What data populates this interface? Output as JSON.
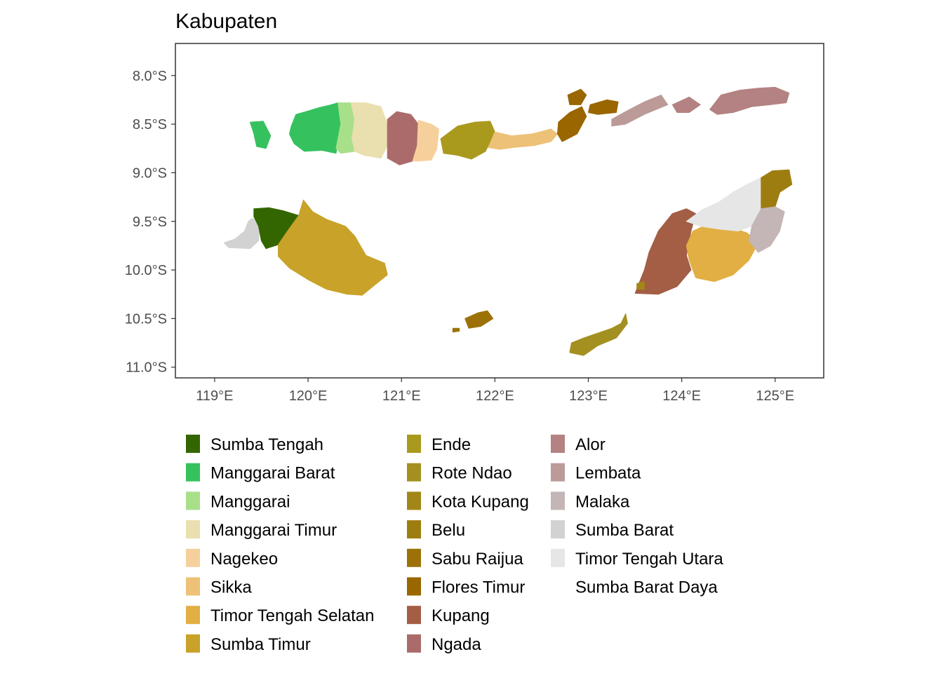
{
  "title": "Kabupaten",
  "x_axis": {
    "range": [
      118.58,
      125.52
    ],
    "ticks": [
      {
        "value": 119,
        "label": "119°E"
      },
      {
        "value": 120,
        "label": "120°E"
      },
      {
        "value": 121,
        "label": "121°E"
      },
      {
        "value": 122,
        "label": "122°E"
      },
      {
        "value": 123,
        "label": "123°E"
      },
      {
        "value": 124,
        "label": "124°E"
      },
      {
        "value": 125,
        "label": "125°E"
      }
    ]
  },
  "y_axis": {
    "range": [
      -11.11,
      -7.67
    ],
    "ticks": [
      {
        "value": -8.0,
        "label": "8.0°S"
      },
      {
        "value": -8.5,
        "label": "8.5°S"
      },
      {
        "value": -9.0,
        "label": "9.0°S"
      },
      {
        "value": -9.5,
        "label": "9.5°S"
      },
      {
        "value": -10.0,
        "label": "10.0°S"
      },
      {
        "value": -10.5,
        "label": "10.5°S"
      },
      {
        "value": -11.0,
        "label": "11.0°S"
      }
    ]
  },
  "legend": {
    "columns": [
      [
        {
          "label": "Sumba Tengah",
          "color": "#336600"
        },
        {
          "label": "Manggarai Barat",
          "color": "#35C25E"
        },
        {
          "label": "Manggarai",
          "color": "#A8E08A"
        },
        {
          "label": "Manggarai Timur",
          "color": "#EADFAE"
        },
        {
          "label": "Nagekeo",
          "color": "#F6D09C"
        },
        {
          "label": "Sikka",
          "color": "#EDC177"
        },
        {
          "label": "Timor Tengah Selatan",
          "color": "#E2AF44"
        },
        {
          "label": "Sumba Timur",
          "color": "#C9A22A"
        }
      ],
      [
        {
          "label": "Ende",
          "color": "#A99A1E"
        },
        {
          "label": "Rote Ndao",
          "color": "#A39020"
        },
        {
          "label": "Kota Kupang",
          "color": "#A28618"
        },
        {
          "label": "Belu",
          "color": "#9E7D10"
        },
        {
          "label": "Sabu Raijua",
          "color": "#9C7208"
        },
        {
          "label": "Flores Timur",
          "color": "#996600"
        },
        {
          "label": "Kupang",
          "color": "#A35E45"
        },
        {
          "label": "Ngada",
          "color": "#AC6B6B"
        }
      ],
      [
        {
          "label": "Alor",
          "color": "#B48282"
        },
        {
          "label": "Lembata",
          "color": "#BC9A98"
        },
        {
          "label": "Malaka",
          "color": "#C4B6B6"
        },
        {
          "label": "Sumba Barat",
          "color": "#D2D2D2"
        },
        {
          "label": "Timor Tengah Utara",
          "color": "#E6E6E6"
        },
        {
          "label": "Sumba Barat Daya",
          "color": "#FFFFFF"
        }
      ]
    ]
  },
  "regions": [
    {
      "name": "Sumba Barat",
      "color": "#D2D2D2",
      "coords": [
        [
          119.4,
          -9.47
        ],
        [
          119.49,
          -9.5
        ],
        [
          119.47,
          -9.7
        ],
        [
          119.38,
          -9.78
        ],
        [
          119.15,
          -9.77
        ],
        [
          119.1,
          -9.72
        ],
        [
          119.22,
          -9.68
        ],
        [
          119.32,
          -9.6
        ],
        [
          119.36,
          -9.5
        ]
      ]
    },
    {
      "name": "Sumba Tengah",
      "color": "#336600",
      "coords": [
        [
          119.42,
          -9.37
        ],
        [
          119.58,
          -9.36
        ],
        [
          119.73,
          -9.39
        ],
        [
          119.9,
          -9.44
        ],
        [
          119.78,
          -9.6
        ],
        [
          119.68,
          -9.74
        ],
        [
          119.55,
          -9.78
        ],
        [
          119.5,
          -9.7
        ],
        [
          119.47,
          -9.55
        ],
        [
          119.42,
          -9.45
        ]
      ]
    },
    {
      "name": "Sumba Timur",
      "color": "#C9A22A",
      "coords": [
        [
          119.9,
          -9.44
        ],
        [
          119.95,
          -9.28
        ],
        [
          120.05,
          -9.4
        ],
        [
          120.2,
          -9.48
        ],
        [
          120.4,
          -9.55
        ],
        [
          120.5,
          -9.65
        ],
        [
          120.62,
          -9.85
        ],
        [
          120.82,
          -9.93
        ],
        [
          120.85,
          -10.05
        ],
        [
          120.72,
          -10.15
        ],
        [
          120.58,
          -10.26
        ],
        [
          120.42,
          -10.25
        ],
        [
          120.2,
          -10.2
        ],
        [
          120.0,
          -10.1
        ],
        [
          119.8,
          -9.98
        ],
        [
          119.68,
          -9.86
        ],
        [
          119.68,
          -9.74
        ],
        [
          119.78,
          -9.6
        ]
      ]
    },
    {
      "name": "Manggarai Barat",
      "color": "#35C25E",
      "coords": [
        [
          119.82,
          -8.52
        ],
        [
          119.87,
          -8.4
        ],
        [
          119.98,
          -8.37
        ],
        [
          120.12,
          -8.33
        ],
        [
          120.25,
          -8.3
        ],
        [
          120.32,
          -8.28
        ],
        [
          120.35,
          -8.5
        ],
        [
          120.3,
          -8.8
        ],
        [
          120.15,
          -8.77
        ],
        [
          119.96,
          -8.78
        ],
        [
          119.85,
          -8.7
        ],
        [
          119.8,
          -8.6
        ]
      ]
    },
    {
      "name": "Manggarai Barat islands",
      "color": "#35C25E",
      "coords": [
        [
          119.38,
          -8.48
        ],
        [
          119.52,
          -8.47
        ],
        [
          119.6,
          -8.62
        ],
        [
          119.55,
          -8.75
        ],
        [
          119.45,
          -8.73
        ],
        [
          119.42,
          -8.6
        ]
      ]
    },
    {
      "name": "Manggarai",
      "color": "#A8E08A",
      "coords": [
        [
          120.32,
          -8.28
        ],
        [
          120.46,
          -8.28
        ],
        [
          120.5,
          -8.45
        ],
        [
          120.47,
          -8.65
        ],
        [
          120.5,
          -8.78
        ],
        [
          120.35,
          -8.8
        ],
        [
          120.3,
          -8.75
        ],
        [
          120.35,
          -8.5
        ]
      ]
    },
    {
      "name": "Manggarai Timur",
      "color": "#EADFAE",
      "coords": [
        [
          120.46,
          -8.28
        ],
        [
          120.62,
          -8.28
        ],
        [
          120.78,
          -8.32
        ],
        [
          120.85,
          -8.5
        ],
        [
          120.85,
          -8.72
        ],
        [
          120.78,
          -8.85
        ],
        [
          120.6,
          -8.82
        ],
        [
          120.5,
          -8.78
        ],
        [
          120.47,
          -8.65
        ],
        [
          120.5,
          -8.45
        ]
      ]
    },
    {
      "name": "Ngada",
      "color": "#AC6B6B",
      "coords": [
        [
          120.85,
          -8.45
        ],
        [
          120.95,
          -8.37
        ],
        [
          121.1,
          -8.4
        ],
        [
          121.18,
          -8.5
        ],
        [
          121.17,
          -8.72
        ],
        [
          121.12,
          -8.88
        ],
        [
          120.98,
          -8.92
        ],
        [
          120.85,
          -8.85
        ]
      ]
    },
    {
      "name": "Nagekeo",
      "color": "#F6D09C",
      "coords": [
        [
          121.18,
          -8.46
        ],
        [
          121.32,
          -8.5
        ],
        [
          121.4,
          -8.55
        ],
        [
          121.38,
          -8.75
        ],
        [
          121.32,
          -8.87
        ],
        [
          121.18,
          -8.88
        ],
        [
          121.12,
          -8.88
        ],
        [
          121.17,
          -8.72
        ]
      ]
    },
    {
      "name": "Ende",
      "color": "#A99A1E",
      "coords": [
        [
          121.42,
          -8.65
        ],
        [
          121.6,
          -8.52
        ],
        [
          121.78,
          -8.48
        ],
        [
          121.95,
          -8.47
        ],
        [
          122.0,
          -8.58
        ],
        [
          121.9,
          -8.78
        ],
        [
          121.75,
          -8.86
        ],
        [
          121.6,
          -8.82
        ],
        [
          121.45,
          -8.8
        ]
      ]
    },
    {
      "name": "Sikka",
      "color": "#EDC177",
      "coords": [
        [
          122.0,
          -8.58
        ],
        [
          122.18,
          -8.62
        ],
        [
          122.4,
          -8.6
        ],
        [
          122.6,
          -8.55
        ],
        [
          122.67,
          -8.6
        ],
        [
          122.6,
          -8.68
        ],
        [
          122.42,
          -8.72
        ],
        [
          122.2,
          -8.74
        ],
        [
          122.05,
          -8.76
        ],
        [
          121.93,
          -8.74
        ]
      ]
    },
    {
      "name": "Flores Timur",
      "color": "#996600",
      "coords": [
        [
          122.68,
          -8.48
        ],
        [
          122.8,
          -8.38
        ],
        [
          122.93,
          -8.32
        ],
        [
          122.98,
          -8.42
        ],
        [
          122.88,
          -8.6
        ],
        [
          122.72,
          -8.68
        ],
        [
          122.67,
          -8.6
        ]
      ]
    },
    {
      "name": "Flores Timur north",
      "color": "#996600",
      "coords": [
        [
          122.78,
          -8.2
        ],
        [
          122.92,
          -8.14
        ],
        [
          122.98,
          -8.2
        ],
        [
          122.92,
          -8.3
        ],
        [
          122.8,
          -8.3
        ]
      ]
    },
    {
      "name": "Flores Timur Adonara",
      "color": "#996600",
      "coords": [
        [
          123.02,
          -8.3
        ],
        [
          123.2,
          -8.25
        ],
        [
          123.32,
          -8.27
        ],
        [
          123.3,
          -8.38
        ],
        [
          123.1,
          -8.4
        ],
        [
          123.0,
          -8.38
        ]
      ]
    },
    {
      "name": "Lembata",
      "color": "#BC9A98",
      "coords": [
        [
          123.25,
          -8.45
        ],
        [
          123.42,
          -8.36
        ],
        [
          123.6,
          -8.27
        ],
        [
          123.78,
          -8.2
        ],
        [
          123.85,
          -8.3
        ],
        [
          123.6,
          -8.4
        ],
        [
          123.4,
          -8.5
        ],
        [
          123.25,
          -8.52
        ]
      ]
    },
    {
      "name": "Alor Pantar",
      "color": "#B48282",
      "coords": [
        [
          123.9,
          -8.3
        ],
        [
          124.08,
          -8.22
        ],
        [
          124.2,
          -8.3
        ],
        [
          124.08,
          -8.38
        ],
        [
          123.95,
          -8.38
        ]
      ]
    },
    {
      "name": "Alor",
      "color": "#B48282",
      "coords": [
        [
          124.3,
          -8.35
        ],
        [
          124.42,
          -8.2
        ],
        [
          124.62,
          -8.15
        ],
        [
          124.82,
          -8.13
        ],
        [
          125.0,
          -8.12
        ],
        [
          125.15,
          -8.18
        ],
        [
          125.12,
          -8.28
        ],
        [
          124.95,
          -8.3
        ],
        [
          124.75,
          -8.32
        ],
        [
          124.55,
          -8.38
        ],
        [
          124.38,
          -8.4
        ]
      ]
    },
    {
      "name": "Kupang",
      "color": "#A35E45",
      "coords": [
        [
          123.6,
          -10.0
        ],
        [
          123.65,
          -9.82
        ],
        [
          123.75,
          -9.6
        ],
        [
          123.9,
          -9.42
        ],
        [
          124.05,
          -9.37
        ],
        [
          124.15,
          -9.42
        ],
        [
          124.1,
          -9.6
        ],
        [
          124.05,
          -9.85
        ],
        [
          124.1,
          -10.0
        ],
        [
          123.95,
          -10.17
        ],
        [
          123.75,
          -10.25
        ],
        [
          123.5,
          -10.24
        ],
        [
          123.55,
          -10.12
        ]
      ]
    },
    {
      "name": "Kota Kupang",
      "color": "#A28618",
      "coords": [
        [
          123.52,
          -10.14
        ],
        [
          123.6,
          -10.12
        ],
        [
          123.6,
          -10.2
        ],
        [
          123.52,
          -10.2
        ]
      ]
    },
    {
      "name": "Timor Tengah Selatan",
      "color": "#E2AF44",
      "coords": [
        [
          124.12,
          -9.6
        ],
        [
          124.3,
          -9.52
        ],
        [
          124.5,
          -9.55
        ],
        [
          124.7,
          -9.62
        ],
        [
          124.82,
          -9.72
        ],
        [
          124.72,
          -9.9
        ],
        [
          124.55,
          -10.05
        ],
        [
          124.35,
          -10.12
        ],
        [
          124.15,
          -10.08
        ],
        [
          124.08,
          -9.9
        ],
        [
          124.05,
          -9.75
        ]
      ]
    },
    {
      "name": "Timor Tengah Utara",
      "color": "#E6E6E6",
      "coords": [
        [
          124.05,
          -9.5
        ],
        [
          124.22,
          -9.38
        ],
        [
          124.4,
          -9.3
        ],
        [
          124.55,
          -9.2
        ],
        [
          124.7,
          -9.12
        ],
        [
          124.85,
          -9.05
        ],
        [
          124.88,
          -9.2
        ],
        [
          124.85,
          -9.37
        ],
        [
          124.75,
          -9.55
        ],
        [
          124.6,
          -9.6
        ],
        [
          124.4,
          -9.58
        ],
        [
          124.2,
          -9.55
        ]
      ]
    },
    {
      "name": "Belu",
      "color": "#9E7D10",
      "coords": [
        [
          124.85,
          -9.05
        ],
        [
          124.97,
          -8.98
        ],
        [
          125.15,
          -8.97
        ],
        [
          125.18,
          -9.12
        ],
        [
          125.05,
          -9.2
        ],
        [
          125.0,
          -9.35
        ],
        [
          124.85,
          -9.38
        ]
      ]
    },
    {
      "name": "Malaka",
      "color": "#C4B6B6",
      "coords": [
        [
          124.85,
          -9.37
        ],
        [
          125.0,
          -9.35
        ],
        [
          125.1,
          -9.4
        ],
        [
          125.05,
          -9.6
        ],
        [
          124.95,
          -9.75
        ],
        [
          124.82,
          -9.82
        ],
        [
          124.72,
          -9.7
        ],
        [
          124.75,
          -9.55
        ]
      ]
    },
    {
      "name": "Rote Ndao",
      "color": "#A39020",
      "coords": [
        [
          122.82,
          -10.75
        ],
        [
          122.95,
          -10.7
        ],
        [
          123.1,
          -10.65
        ],
        [
          123.25,
          -10.6
        ],
        [
          123.35,
          -10.55
        ],
        [
          123.4,
          -10.45
        ],
        [
          123.42,
          -10.55
        ],
        [
          123.3,
          -10.7
        ],
        [
          123.1,
          -10.78
        ],
        [
          122.95,
          -10.88
        ],
        [
          122.8,
          -10.85
        ]
      ]
    },
    {
      "name": "Sabu Raijua",
      "color": "#9C7208",
      "coords": [
        [
          121.68,
          -10.5
        ],
        [
          121.82,
          -10.44
        ],
        [
          121.92,
          -10.42
        ],
        [
          121.98,
          -10.5
        ],
        [
          121.85,
          -10.58
        ],
        [
          121.72,
          -10.6
        ]
      ]
    },
    {
      "name": "Sabu Raijua Raijua",
      "color": "#9C7208",
      "coords": [
        [
          121.55,
          -10.6
        ],
        [
          121.62,
          -10.6
        ],
        [
          121.62,
          -10.63
        ],
        [
          121.55,
          -10.64
        ]
      ]
    }
  ]
}
